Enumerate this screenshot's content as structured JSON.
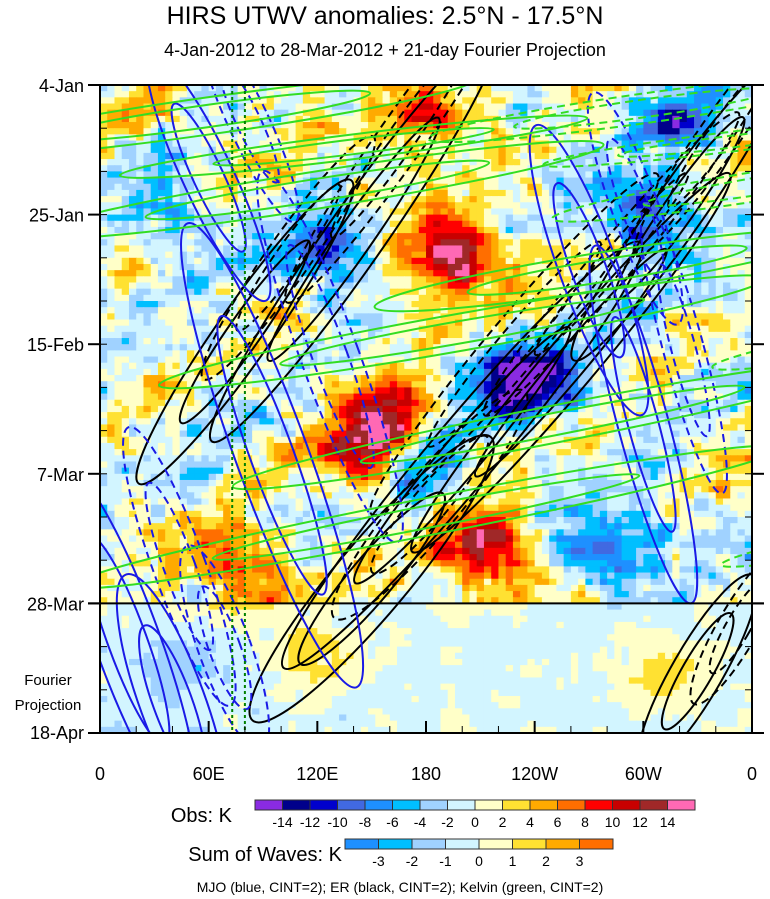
{
  "chart_data": {
    "type": "heatmap",
    "title": "HIRS UTWV anomalies: 2.5°N - 17.5°N",
    "subtitle": "4-Jan-2012 to 28-Mar-2012 + 21-day Fourier Projection",
    "x_ticks": [
      {
        "lon": 0,
        "label": "0"
      },
      {
        "lon": 60,
        "label": "60E"
      },
      {
        "lon": 120,
        "label": "120E"
      },
      {
        "lon": 180,
        "label": "180"
      },
      {
        "lon": 240,
        "label": "120W"
      },
      {
        "lon": 300,
        "label": "60W"
      },
      {
        "lon": 360,
        "label": "0"
      }
    ],
    "y_ticks": [
      {
        "day": 0,
        "label": "4-Jan"
      },
      {
        "day": 21,
        "label": "25-Jan"
      },
      {
        "day": 42,
        "label": "15-Feb"
      },
      {
        "day": 63,
        "label": "7-Mar"
      },
      {
        "day": 84,
        "label": "28-Mar"
      },
      {
        "day": 105,
        "label": "18-Apr"
      }
    ],
    "xlim": [
      0,
      360
    ],
    "ylim_days": [
      0,
      105
    ],
    "projection_label": [
      "Fourier",
      "Projection"
    ],
    "obs_end_day": 84,
    "reference_lons": [
      73,
      80
    ],
    "features": [
      {
        "lon": 195,
        "day": 28,
        "amp": 16
      },
      {
        "lon": 185,
        "day": 5,
        "amp": 10
      },
      {
        "lon": 210,
        "day": 75,
        "amp": 15
      },
      {
        "lon": 150,
        "day": 60,
        "amp": 13
      },
      {
        "lon": 75,
        "day": 78,
        "amp": 11
      },
      {
        "lon": 160,
        "day": 53,
        "amp": 10
      },
      {
        "lon": 245,
        "day": 48,
        "amp": -12
      },
      {
        "lon": 300,
        "day": 21,
        "amp": -11
      },
      {
        "lon": 280,
        "day": 75,
        "amp": -11
      },
      {
        "lon": 125,
        "day": 27,
        "amp": -10
      },
      {
        "lon": 220,
        "day": 48,
        "amp": -9
      },
      {
        "lon": 40,
        "day": 20,
        "amp": -6
      },
      {
        "lon": 175,
        "day": 62,
        "amp": -9
      },
      {
        "lon": 320,
        "day": 5,
        "amp": -8
      },
      {
        "lon": 120,
        "day": 92,
        "amp": 3
      },
      {
        "lon": 310,
        "day": 95,
        "amp": 3
      },
      {
        "lon": 45,
        "day": 95,
        "amp": -2
      }
    ],
    "contours": {
      "mjo": [
        [
          15,
          90,
          18,
          30,
          -20
        ],
        [
          95,
          60,
          20,
          40,
          -20
        ],
        [
          300,
          55,
          14,
          30,
          -15
        ],
        [
          270,
          30,
          16,
          25,
          -20
        ],
        [
          60,
          15,
          14,
          22,
          -25
        ],
        [
          40,
          100,
          18,
          22,
          -20
        ]
      ],
      "er": [
        [
          140,
          25,
          16,
          40,
          35
        ],
        [
          200,
          60,
          18,
          45,
          40
        ],
        [
          260,
          45,
          14,
          40,
          40
        ],
        [
          320,
          20,
          14,
          30,
          35
        ],
        [
          330,
          95,
          14,
          18,
          30
        ],
        [
          150,
          80,
          20,
          30,
          40
        ],
        [
          80,
          40,
          15,
          30,
          35
        ]
      ],
      "kelvin": [
        [
          60,
          5,
          150,
          3,
          -8
        ],
        [
          120,
          17,
          160,
          3,
          -9
        ],
        [
          200,
          40,
          170,
          3,
          -10
        ],
        [
          250,
          55,
          180,
          3,
          -11
        ],
        [
          180,
          70,
          200,
          3,
          -11
        ],
        [
          140,
          10,
          130,
          2,
          -7
        ],
        [
          280,
          30,
          130,
          3,
          -9
        ]
      ]
    },
    "obs_colorbar": {
      "label": "Obs: K",
      "ticks": [
        "-14",
        "-12",
        "-10",
        "-8",
        "-6",
        "-4",
        "-2",
        "0",
        "2",
        "4",
        "6",
        "8",
        "10",
        "12",
        "14"
      ],
      "colors": [
        "#8a2be2",
        "#00008b",
        "#0000cd",
        "#4169e1",
        "#1e90ff",
        "#00bfff",
        "#a0d2ff",
        "#d2f5ff",
        "#ffffc8",
        "#ffe132",
        "#ffaa00",
        "#ff6e00",
        "#ff0000",
        "#c80000",
        "#a02828",
        "#ff69b4"
      ]
    },
    "waves_colorbar": {
      "label": "Sum of Waves: K",
      "ticks": [
        "-3",
        "-2",
        "-1",
        "0",
        "1",
        "2",
        "3"
      ],
      "colors": [
        "#1e90ff",
        "#00bfff",
        "#a0d2ff",
        "#d2f5ff",
        "#ffffc8",
        "#ffe132",
        "#ffaa00",
        "#ff6e00"
      ]
    },
    "legend_text": "MJO (blue, CINT=2); ER (black, CINT=2); Kelvin (green, CINT=2)"
  }
}
